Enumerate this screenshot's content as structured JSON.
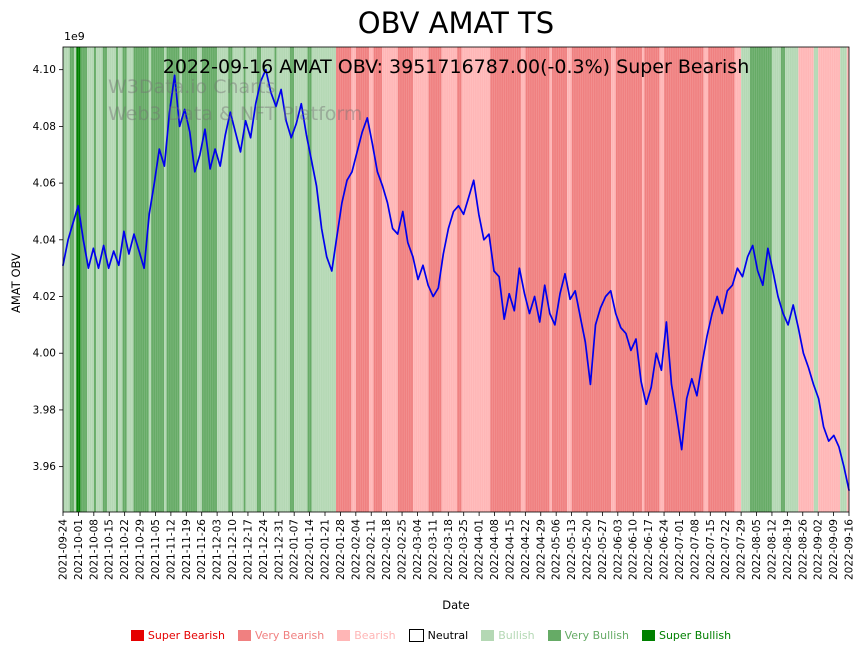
{
  "watermark": {
    "line1": "W3Data.io Charts",
    "line2": "Web3 Data & NFT Platform"
  },
  "chart_data": {
    "type": "line",
    "title": "OBV AMAT TS",
    "subtitle": "2022-09-16 AMAT OBV: 3951716787.00(-0.3%) Super Bearish",
    "xlabel": "Date",
    "ylabel": "AMAT OBV",
    "y_offset_label": "1e9",
    "ylim": [
      3.944,
      4.108
    ],
    "y_ticks": [
      3.96,
      3.98,
      4.0,
      4.02,
      4.04,
      4.06,
      4.08,
      4.1
    ],
    "x_range": [
      "2021-09-24",
      "2022-09-16"
    ],
    "x_tick_labels": [
      "2021-09-24",
      "2021-10-01",
      "2021-10-08",
      "2021-10-15",
      "2021-10-22",
      "2021-10-29",
      "2021-11-05",
      "2021-11-12",
      "2021-11-19",
      "2021-11-26",
      "2021-12-03",
      "2021-12-10",
      "2021-12-17",
      "2021-12-24",
      "2021-12-31",
      "2022-01-07",
      "2022-01-14",
      "2022-01-21",
      "2022-01-28",
      "2022-02-04",
      "2022-02-11",
      "2022-02-18",
      "2022-02-25",
      "2022-03-04",
      "2022-03-11",
      "2022-03-18",
      "2022-03-25",
      "2022-04-01",
      "2022-04-08",
      "2022-04-15",
      "2022-04-22",
      "2022-04-29",
      "2022-05-06",
      "2022-05-13",
      "2022-05-20",
      "2022-05-27",
      "2022-06-03",
      "2022-06-10",
      "2022-06-17",
      "2022-06-24",
      "2022-07-01",
      "2022-07-08",
      "2022-07-15",
      "2022-07-22",
      "2022-07-29",
      "2022-08-05",
      "2022-08-12",
      "2022-08-19",
      "2022-08-26",
      "2022-09-02",
      "2022-09-09",
      "2022-09-16"
    ],
    "latest": {
      "date": "2022-09-16",
      "obv": "3951716787.00",
      "change_pct": "-0.3%",
      "signal": "Super Bearish"
    },
    "line_color": "#0000ee",
    "points_per_week": 3,
    "series": [
      {
        "name": "AMAT OBV",
        "unit": "1e9",
        "values": [
          4.031,
          4.04,
          4.046,
          4.052,
          4.04,
          4.03,
          4.037,
          4.03,
          4.038,
          4.03,
          4.036,
          4.031,
          4.043,
          4.035,
          4.042,
          4.036,
          4.03,
          4.049,
          4.06,
          4.072,
          4.066,
          4.085,
          4.098,
          4.08,
          4.086,
          4.078,
          4.064,
          4.07,
          4.079,
          4.065,
          4.072,
          4.066,
          4.077,
          4.085,
          4.078,
          4.071,
          4.082,
          4.076,
          4.088,
          4.096,
          4.1,
          4.092,
          4.087,
          4.093,
          4.082,
          4.076,
          4.081,
          4.088,
          4.077,
          4.068,
          4.059,
          4.044,
          4.034,
          4.029,
          4.041,
          4.053,
          4.061,
          4.064,
          4.071,
          4.078,
          4.083,
          4.074,
          4.064,
          4.059,
          4.053,
          4.044,
          4.042,
          4.05,
          4.039,
          4.034,
          4.026,
          4.031,
          4.024,
          4.02,
          4.023,
          4.035,
          4.044,
          4.05,
          4.052,
          4.049,
          4.055,
          4.061,
          4.049,
          4.04,
          4.042,
          4.029,
          4.027,
          4.012,
          4.021,
          4.015,
          4.03,
          4.021,
          4.014,
          4.02,
          4.011,
          4.024,
          4.014,
          4.01,
          4.021,
          4.028,
          4.019,
          4.022,
          4.013,
          4.004,
          3.989,
          4.01,
          4.016,
          4.02,
          4.022,
          4.014,
          4.009,
          4.007,
          4.001,
          4.005,
          3.99,
          3.982,
          3.988,
          4.0,
          3.994,
          4.011,
          3.989,
          3.978,
          3.966,
          3.984,
          3.991,
          3.985,
          3.996,
          4.006,
          4.014,
          4.02,
          4.014,
          4.022,
          4.024,
          4.03,
          4.027,
          4.034,
          4.038,
          4.029,
          4.024,
          4.037,
          4.029,
          4.02,
          4.014,
          4.01,
          4.017,
          4.009,
          4.0,
          3.995,
          3.989,
          3.984,
          3.974,
          3.969,
          3.971,
          3.967,
          3.96,
          3.9517
        ]
      }
    ],
    "level_colors": {
      "super_bearish": "#e50000",
      "very_bearish": "#f08080",
      "bearish": "#ffb6b6",
      "neutral": "#ffffff",
      "bullish": "#b4d8b4",
      "very_bullish": "#66ab66",
      "super_bullish": "#008000"
    },
    "bands": [
      [
        "2021-09-24",
        "2021-09-27",
        "bullish"
      ],
      [
        "2021-09-27",
        "2021-09-29",
        "very_bullish"
      ],
      [
        "2021-09-29",
        "2021-09-30",
        "bullish"
      ],
      [
        "2021-09-30",
        "2021-10-02",
        "super_bullish"
      ],
      [
        "2021-10-02",
        "2021-10-05",
        "very_bullish"
      ],
      [
        "2021-10-05",
        "2021-10-08",
        "bullish"
      ],
      [
        "2021-10-08",
        "2021-10-09",
        "very_bullish"
      ],
      [
        "2021-10-09",
        "2021-10-12",
        "bullish"
      ],
      [
        "2021-10-12",
        "2021-10-14",
        "very_bullish"
      ],
      [
        "2021-10-14",
        "2021-10-18",
        "bullish"
      ],
      [
        "2021-10-18",
        "2021-10-19",
        "very_bullish"
      ],
      [
        "2021-10-19",
        "2021-10-21",
        "bullish"
      ],
      [
        "2021-10-21",
        "2021-10-23",
        "very_bullish"
      ],
      [
        "2021-10-23",
        "2021-10-26",
        "bullish"
      ],
      [
        "2021-10-26",
        "2021-11-02",
        "very_bullish"
      ],
      [
        "2021-11-02",
        "2021-11-03",
        "bullish"
      ],
      [
        "2021-11-03",
        "2021-11-09",
        "very_bullish"
      ],
      [
        "2021-11-09",
        "2021-11-10",
        "bullish"
      ],
      [
        "2021-11-10",
        "2021-11-16",
        "very_bullish"
      ],
      [
        "2021-11-16",
        "2021-11-17",
        "bullish"
      ],
      [
        "2021-11-17",
        "2021-11-24",
        "very_bullish"
      ],
      [
        "2021-11-24",
        "2021-11-26",
        "bullish"
      ],
      [
        "2021-11-26",
        "2021-12-03",
        "very_bullish"
      ],
      [
        "2021-12-03",
        "2021-12-08",
        "bullish"
      ],
      [
        "2021-12-08",
        "2021-12-10",
        "very_bullish"
      ],
      [
        "2021-12-10",
        "2021-12-15",
        "bullish"
      ],
      [
        "2021-12-15",
        "2021-12-16",
        "very_bullish"
      ],
      [
        "2021-12-16",
        "2021-12-21",
        "bullish"
      ],
      [
        "2021-12-21",
        "2021-12-23",
        "very_bullish"
      ],
      [
        "2021-12-23",
        "2021-12-29",
        "bullish"
      ],
      [
        "2021-12-29",
        "2021-12-30",
        "very_bullish"
      ],
      [
        "2021-12-30",
        "2022-01-05",
        "bullish"
      ],
      [
        "2022-01-05",
        "2022-01-07",
        "very_bullish"
      ],
      [
        "2022-01-07",
        "2022-01-13",
        "bullish"
      ],
      [
        "2022-01-13",
        "2022-01-15",
        "very_bullish"
      ],
      [
        "2022-01-15",
        "2022-01-26",
        "bullish"
      ],
      [
        "2022-01-26",
        "2022-02-02",
        "very_bearish"
      ],
      [
        "2022-02-02",
        "2022-02-04",
        "bearish"
      ],
      [
        "2022-02-04",
        "2022-02-10",
        "very_bearish"
      ],
      [
        "2022-02-10",
        "2022-02-12",
        "bearish"
      ],
      [
        "2022-02-12",
        "2022-02-16",
        "very_bearish"
      ],
      [
        "2022-02-16",
        "2022-02-23",
        "bearish"
      ],
      [
        "2022-02-23",
        "2022-03-02",
        "very_bearish"
      ],
      [
        "2022-03-02",
        "2022-03-09",
        "bearish"
      ],
      [
        "2022-03-09",
        "2022-03-15",
        "very_bearish"
      ],
      [
        "2022-03-15",
        "2022-03-22",
        "bearish"
      ],
      [
        "2022-03-22",
        "2022-03-24",
        "very_bearish"
      ],
      [
        "2022-03-24",
        "2022-04-06",
        "bearish"
      ],
      [
        "2022-04-06",
        "2022-04-20",
        "very_bearish"
      ],
      [
        "2022-04-20",
        "2022-04-22",
        "bearish"
      ],
      [
        "2022-04-22",
        "2022-05-03",
        "very_bearish"
      ],
      [
        "2022-05-03",
        "2022-05-04",
        "bearish"
      ],
      [
        "2022-05-04",
        "2022-05-11",
        "very_bearish"
      ],
      [
        "2022-05-11",
        "2022-05-13",
        "bearish"
      ],
      [
        "2022-05-13",
        "2022-05-31",
        "very_bearish"
      ],
      [
        "2022-05-31",
        "2022-06-02",
        "bearish"
      ],
      [
        "2022-06-02",
        "2022-06-14",
        "very_bearish"
      ],
      [
        "2022-06-14",
        "2022-06-15",
        "bearish"
      ],
      [
        "2022-06-15",
        "2022-06-22",
        "very_bearish"
      ],
      [
        "2022-06-22",
        "2022-06-24",
        "bearish"
      ],
      [
        "2022-06-24",
        "2022-07-12",
        "very_bearish"
      ],
      [
        "2022-07-12",
        "2022-07-14",
        "bearish"
      ],
      [
        "2022-07-14",
        "2022-07-26",
        "very_bearish"
      ],
      [
        "2022-07-26",
        "2022-07-29",
        "bearish"
      ],
      [
        "2022-07-29",
        "2022-08-02",
        "bullish"
      ],
      [
        "2022-08-02",
        "2022-08-12",
        "very_bullish"
      ],
      [
        "2022-08-12",
        "2022-08-16",
        "bullish"
      ],
      [
        "2022-08-16",
        "2022-08-18",
        "very_bullish"
      ],
      [
        "2022-08-18",
        "2022-08-24",
        "bullish"
      ],
      [
        "2022-08-24",
        "2022-08-31",
        "bearish"
      ],
      [
        "2022-08-31",
        "2022-09-02",
        "bullish"
      ],
      [
        "2022-09-02",
        "2022-09-12",
        "bearish"
      ],
      [
        "2022-09-12",
        "2022-09-15",
        "bullish"
      ],
      [
        "2022-09-15",
        "2022-09-16",
        "bearish"
      ]
    ],
    "legend": [
      {
        "label": "Super Bearish",
        "color": "#e50000",
        "text_color": "#e50000"
      },
      {
        "label": "Very Bearish",
        "color": "#f08080",
        "text_color": "#f08080"
      },
      {
        "label": "Bearish",
        "color": "#ffb6b6",
        "text_color": "#ffb6b6"
      },
      {
        "label": "Neutral",
        "color": "#ffffff",
        "text_color": "#000000"
      },
      {
        "label": "Bullish",
        "color": "#b4d8b4",
        "text_color": "#b4d8b4"
      },
      {
        "label": "Very Bullish",
        "color": "#66ab66",
        "text_color": "#66ab66"
      },
      {
        "label": "Super Bullish",
        "color": "#008000",
        "text_color": "#008000"
      }
    ]
  }
}
